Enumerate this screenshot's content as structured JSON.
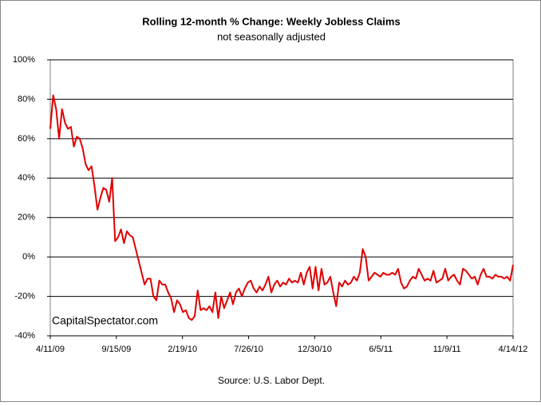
{
  "chart_data": {
    "type": "line",
    "title": "Rolling 12-month %  Change: Weekly Jobless Claims",
    "subtitle": "not seasonally adjusted",
    "source": "Source: U.S. Labor Dept.",
    "watermark": "CapitalSpectator.com",
    "color": "#e00000",
    "grid": true,
    "xlim": [
      "4/11/09",
      "4/14/12"
    ],
    "xticks": [
      "4/11/09",
      "9/15/09",
      "2/19/10",
      "7/26/10",
      "12/30/10",
      "6/5/11",
      "11/9/11",
      "4/14/12"
    ],
    "ylim": [
      -40,
      100
    ],
    "yticks": [
      {
        "value": -40,
        "label": "-40%"
      },
      {
        "value": -20,
        "label": "-20%"
      },
      {
        "value": 0,
        "label": "0%"
      },
      {
        "value": 20,
        "label": "20%"
      },
      {
        "value": 40,
        "label": "40%"
      },
      {
        "value": 60,
        "label": "60%"
      },
      {
        "value": 80,
        "label": "80%"
      },
      {
        "value": 100,
        "label": "100%"
      }
    ],
    "x": [
      "4/11/09",
      "4/18/09",
      "4/25/09",
      "5/2/09",
      "5/9/09",
      "5/16/09",
      "5/23/09",
      "5/30/09",
      "6/6/09",
      "6/13/09",
      "6/20/09",
      "6/27/09",
      "7/4/09",
      "7/11/09",
      "7/18/09",
      "7/25/09",
      "8/1/09",
      "8/8/09",
      "8/15/09",
      "8/22/09",
      "8/29/09",
      "9/5/09",
      "9/12/09",
      "9/19/09",
      "9/26/09",
      "10/3/09",
      "10/10/09",
      "10/17/09",
      "10/24/09",
      "10/31/09",
      "11/7/09",
      "11/14/09",
      "11/21/09",
      "11/28/09",
      "12/5/09",
      "12/12/09",
      "12/19/09",
      "12/26/09",
      "1/2/10",
      "1/9/10",
      "1/16/10",
      "1/23/10",
      "1/30/10",
      "2/6/10",
      "2/13/10",
      "2/20/10",
      "2/27/10",
      "3/6/10",
      "3/13/10",
      "3/20/10",
      "3/27/10",
      "4/3/10",
      "4/10/10",
      "4/17/10",
      "4/24/10",
      "5/1/10",
      "5/8/10",
      "5/15/10",
      "5/22/10",
      "5/29/10",
      "6/5/10",
      "6/12/10",
      "6/19/10",
      "6/26/10",
      "7/3/10",
      "7/10/10",
      "7/17/10",
      "7/24/10",
      "7/31/10",
      "8/7/10",
      "8/14/10",
      "8/21/10",
      "8/28/10",
      "9/4/10",
      "9/11/10",
      "9/18/10",
      "9/25/10",
      "10/2/10",
      "10/9/10",
      "10/16/10",
      "10/23/10",
      "10/30/10",
      "11/6/10",
      "11/13/10",
      "11/20/10",
      "11/27/10",
      "12/4/10",
      "12/11/10",
      "12/18/10",
      "12/25/10",
      "1/1/11",
      "1/8/11",
      "1/15/11",
      "1/22/11",
      "1/29/11",
      "2/5/11",
      "2/12/11",
      "2/19/11",
      "2/26/11",
      "3/5/11",
      "3/12/11",
      "3/19/11",
      "3/26/11",
      "4/2/11",
      "4/9/11",
      "4/16/11",
      "4/23/11",
      "4/30/11",
      "5/7/11",
      "5/14/11",
      "5/21/11",
      "5/28/11",
      "6/4/11",
      "6/11/11",
      "6/18/11",
      "6/25/11",
      "7/2/11",
      "7/9/11",
      "7/16/11",
      "7/23/11",
      "7/30/11",
      "8/6/11",
      "8/13/11",
      "8/20/11",
      "8/27/11",
      "9/3/11",
      "9/10/11",
      "9/17/11",
      "9/24/11",
      "10/1/11",
      "10/8/11",
      "10/15/11",
      "10/22/11",
      "10/29/11",
      "11/5/11",
      "11/12/11",
      "11/19/11",
      "11/26/11",
      "12/3/11",
      "12/10/11",
      "12/17/11",
      "12/24/11",
      "12/31/11",
      "1/7/12",
      "1/14/12",
      "1/21/12",
      "1/28/12",
      "2/4/12",
      "2/11/12",
      "2/18/12",
      "2/25/12",
      "3/3/12",
      "3/10/12",
      "3/17/12",
      "3/24/12",
      "3/31/12",
      "4/7/12",
      "4/14/12"
    ],
    "values": [
      65,
      82,
      75,
      60,
      75,
      68,
      65,
      66,
      56,
      61,
      60,
      55,
      47,
      44,
      46,
      36,
      24,
      30,
      35,
      34,
      28,
      40,
      8,
      10,
      14,
      7,
      13,
      11,
      10,
      4,
      -2,
      -8,
      -14,
      -11,
      -11,
      -20,
      -22,
      -12,
      -14,
      -14,
      -18,
      -21,
      -28,
      -22,
      -24,
      -28,
      -27,
      -31,
      -32,
      -30,
      -17,
      -27,
      -26,
      -27,
      -25,
      -28,
      -18,
      -31,
      -20,
      -26,
      -22,
      -18,
      -24,
      -18,
      -16,
      -20,
      -16,
      -13,
      -12,
      -16,
      -18,
      -15,
      -17,
      -14,
      -10,
      -18,
      -14,
      -12,
      -15,
      -13,
      -14,
      -11,
      -13,
      -12,
      -13,
      -8,
      -14,
      -8,
      -5,
      -16,
      -5,
      -17,
      -6,
      -14,
      -13,
      -10,
      -18,
      -25,
      -13,
      -15,
      -12,
      -14,
      -13,
      -10,
      -12,
      -8,
      4,
      0,
      -12,
      -10,
      -8,
      -9,
      -10,
      -8,
      -9,
      -9,
      -8,
      -9,
      -6,
      -13,
      -16,
      -15,
      -12,
      -10,
      -11,
      -6,
      -9,
      -12,
      -11,
      -12,
      -7,
      -13,
      -12,
      -11,
      -6,
      -12,
      -10,
      -9,
      -12,
      -14,
      -6,
      -7,
      -9,
      -11,
      -10,
      -14,
      -9,
      -6,
      -10,
      -10,
      -11,
      -9,
      -10,
      -10,
      -11,
      -10,
      -12,
      -4
    ]
  }
}
